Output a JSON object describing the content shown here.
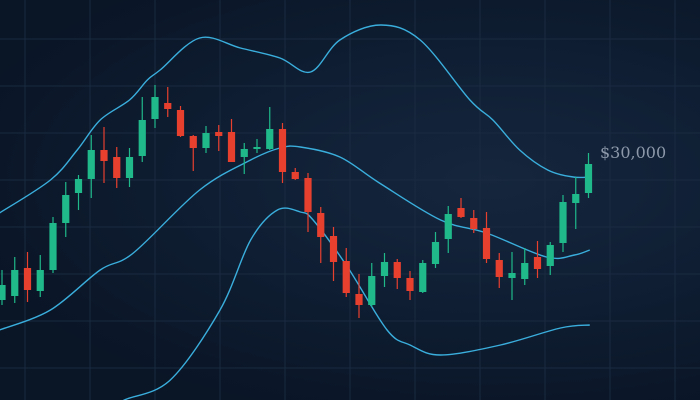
{
  "chart_data": {
    "type": "candlestick",
    "title": "",
    "xlabel": "",
    "ylabel": "",
    "price_label": "$30,000",
    "grid": true,
    "colors": {
      "up": "#1fb98a",
      "down": "#e8402f",
      "bands": "#3aaedc",
      "background": "#0b1628",
      "grid": "#1a2a40",
      "label": "#8d99ab"
    },
    "candles_ohlc": [
      [
        100,
        130,
        95,
        115
      ],
      [
        104,
        143,
        97,
        130
      ],
      [
        132,
        148,
        98,
        110
      ],
      [
        109,
        145,
        103,
        130
      ],
      [
        130,
        183,
        127,
        177
      ],
      [
        177,
        218,
        163,
        205
      ],
      [
        207,
        225,
        190,
        221
      ],
      [
        221,
        265,
        202,
        250
      ],
      [
        250,
        273,
        217,
        239
      ],
      [
        243,
        253,
        212,
        222
      ],
      [
        222,
        252,
        213,
        243
      ],
      [
        244,
        303,
        238,
        280
      ],
      [
        281,
        315,
        272,
        303
      ],
      [
        297,
        313,
        283,
        291
      ],
      [
        290,
        294,
        263,
        264
      ],
      [
        264,
        265,
        229,
        252
      ],
      [
        252,
        274,
        247,
        267
      ],
      [
        268,
        275,
        249,
        264
      ],
      [
        268,
        281,
        238,
        238
      ],
      [
        243,
        257,
        226,
        251
      ],
      [
        251,
        261,
        247,
        253
      ],
      [
        251,
        293,
        250,
        271
      ],
      [
        271,
        277,
        217,
        228
      ],
      [
        228,
        232,
        220,
        221
      ],
      [
        222,
        227,
        168,
        188
      ],
      [
        187,
        193,
        137,
        163
      ],
      [
        164,
        173,
        119,
        138
      ],
      [
        139,
        152,
        103,
        107
      ],
      [
        106,
        126,
        82,
        95
      ],
      [
        95,
        137,
        93,
        124
      ],
      [
        124,
        147,
        113,
        138
      ],
      [
        138,
        141,
        111,
        122
      ],
      [
        122,
        129,
        100,
        109
      ],
      [
        108,
        140,
        107,
        137
      ],
      [
        136,
        168,
        132,
        158
      ],
      [
        161,
        194,
        147,
        186
      ],
      [
        192,
        202,
        182,
        183
      ],
      [
        182,
        190,
        167,
        171
      ],
      [
        172,
        188,
        137,
        141
      ],
      [
        140,
        147,
        112,
        123
      ],
      [
        122,
        148,
        100,
        127
      ],
      [
        121,
        152,
        115,
        137
      ],
      [
        143,
        159,
        122,
        131
      ],
      [
        134,
        158,
        125,
        155
      ],
      [
        157,
        205,
        148,
        198
      ],
      [
        197,
        223,
        171,
        206
      ],
      [
        207,
        247,
        202,
        236
      ]
    ],
    "bollinger_upper": [
      [
        -0.2,
        187
      ],
      [
        3.8,
        220
      ],
      [
        5.9,
        250
      ],
      [
        7.7,
        280
      ],
      [
        10.0,
        300
      ],
      [
        11.4,
        320
      ],
      [
        12.4,
        330
      ],
      [
        15.5,
        362
      ],
      [
        18.7,
        352
      ],
      [
        21.8,
        342
      ],
      [
        24.2,
        328
      ],
      [
        26.5,
        360
      ],
      [
        29.7,
        375
      ],
      [
        32.8,
        360
      ],
      [
        36.7,
        300
      ],
      [
        38.5,
        280
      ],
      [
        40.6,
        250
      ],
      [
        42.8,
        230
      ],
      [
        44.8,
        223
      ],
      [
        46.1,
        223
      ]
    ],
    "bollinger_middle": [
      [
        -0.2,
        70
      ],
      [
        3.8,
        90
      ],
      [
        7.7,
        130
      ],
      [
        10.3,
        147
      ],
      [
        15.5,
        210
      ],
      [
        19.5,
        240
      ],
      [
        21.8,
        252
      ],
      [
        23.4,
        253
      ],
      [
        26.5,
        243
      ],
      [
        29.6,
        217
      ],
      [
        34.4,
        180
      ],
      [
        38.0,
        167
      ],
      [
        42.7,
        143
      ],
      [
        44.9,
        145
      ],
      [
        46.1,
        150
      ]
    ],
    "bollinger_lower": [
      [
        8.5,
        -10
      ],
      [
        9.6,
        0
      ],
      [
        13.2,
        20
      ],
      [
        17.1,
        90
      ],
      [
        19.5,
        160
      ],
      [
        21.6,
        190
      ],
      [
        23.4,
        188
      ],
      [
        24.4,
        180
      ],
      [
        27.1,
        133
      ],
      [
        30.2,
        70
      ],
      [
        32.0,
        55
      ],
      [
        34.4,
        45
      ],
      [
        39.1,
        55
      ],
      [
        43.8,
        72
      ],
      [
        46.1,
        75
      ]
    ]
  }
}
